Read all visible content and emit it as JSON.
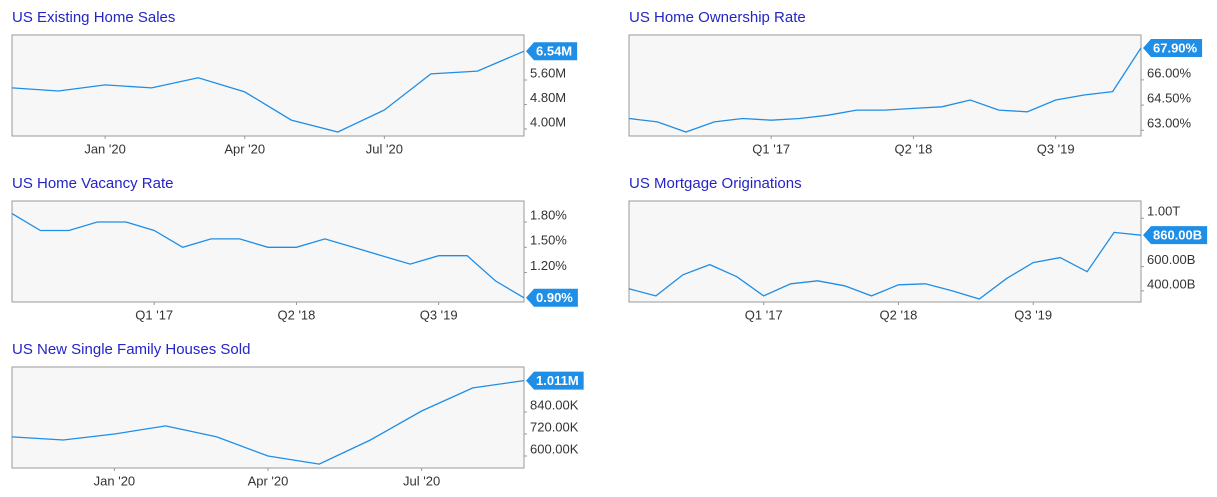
{
  "chart_data": [
    {
      "type": "line",
      "title": "US Existing Home Sales",
      "categories": [
        null,
        null,
        "Jan '20",
        null,
        null,
        "Apr '20",
        null,
        null,
        "Jul '20",
        null,
        null,
        null
      ],
      "values": [
        5.34,
        5.24,
        5.44,
        5.34,
        5.67,
        5.21,
        4.29,
        3.9,
        4.62,
        5.8,
        5.89,
        6.54
      ],
      "value_labels": [
        null,
        null,
        null,
        null,
        null,
        null,
        null,
        null,
        null,
        null,
        null,
        "6.54M"
      ],
      "color": "#1f8ee6",
      "ylim": [
        3.77,
        7.07
      ],
      "yticks": [
        {
          "value": 4.0,
          "label": "4.00M"
        },
        {
          "value": 4.8,
          "label": "4.80M"
        },
        {
          "value": 5.6,
          "label": "5.60M"
        }
      ]
    },
    {
      "type": "line",
      "title": "US Home Ownership Rate",
      "categories": [
        null,
        null,
        null,
        null,
        null,
        "Q1 '17",
        null,
        null,
        null,
        null,
        "Q2 '18",
        null,
        null,
        null,
        null,
        "Q3 '19",
        null,
        null,
        null
      ],
      "values": [
        63.7,
        63.5,
        62.9,
        63.5,
        63.7,
        63.6,
        63.7,
        63.9,
        64.2,
        64.2,
        64.3,
        64.4,
        64.8,
        64.2,
        64.1,
        64.8,
        65.1,
        65.3,
        67.9
      ],
      "value_labels": [
        null,
        null,
        null,
        null,
        null,
        null,
        null,
        null,
        null,
        null,
        null,
        null,
        null,
        null,
        null,
        null,
        null,
        null,
        "67.90%"
      ],
      "color": "#1f8ee6",
      "ylim": [
        62.66,
        68.67
      ],
      "yticks": [
        {
          "value": 63,
          "label": "63.00%"
        },
        {
          "value": 64.5,
          "label": "64.50%"
        },
        {
          "value": 66,
          "label": "66.00%"
        }
      ]
    },
    {
      "type": "line",
      "title": "US Home Vacancy Rate",
      "categories": [
        null,
        null,
        null,
        null,
        null,
        "Q1 '17",
        null,
        null,
        null,
        null,
        "Q2 '18",
        null,
        null,
        null,
        null,
        "Q3 '19",
        null,
        null,
        null
      ],
      "values": [
        1.9,
        1.7,
        1.7,
        1.8,
        1.8,
        1.7,
        1.5,
        1.6,
        1.6,
        1.5,
        1.5,
        1.6,
        1.5,
        1.4,
        1.3,
        1.4,
        1.4,
        1.1,
        0.9
      ],
      "value_labels": [
        null,
        null,
        null,
        null,
        null,
        null,
        null,
        null,
        null,
        null,
        null,
        null,
        null,
        null,
        null,
        null,
        null,
        null,
        "0.90%"
      ],
      "color": "#1f8ee6",
      "ylim": [
        0.85,
        2.05
      ],
      "yticks": [
        {
          "value": 1.2,
          "label": "1.20%"
        },
        {
          "value": 1.5,
          "label": "1.50%"
        },
        {
          "value": 1.8,
          "label": "1.80%"
        }
      ]
    },
    {
      "type": "line",
      "title": "US Mortgage Originations",
      "categories": [
        null,
        null,
        null,
        null,
        null,
        "Q1 '17",
        null,
        null,
        null,
        null,
        "Q2 '18",
        null,
        null,
        null,
        null,
        "Q3 '19",
        null,
        null,
        null,
        null
      ],
      "values": [
        417,
        358,
        533,
        617,
        517,
        358,
        458,
        483,
        442,
        358,
        450,
        458,
        400,
        333,
        500,
        633,
        675,
        558,
        883,
        860
      ],
      "value_labels": [
        null,
        null,
        null,
        null,
        null,
        null,
        null,
        null,
        null,
        null,
        null,
        null,
        null,
        null,
        null,
        null,
        null,
        null,
        null,
        "860.00B"
      ],
      "color": "#1f8ee6",
      "ylim": [
        308,
        1142
      ],
      "yticks": [
        {
          "value": 400,
          "label": "400.00B"
        },
        {
          "value": 600,
          "label": "600.00B"
        },
        {
          "value": 1000,
          "label": "1.00T"
        }
      ]
    },
    {
      "type": "line",
      "title": "US New Single Family Houses Sold",
      "categories": [
        null,
        null,
        "Jan '20",
        null,
        null,
        "Apr '20",
        null,
        null,
        "Jul '20",
        null,
        null
      ],
      "values": [
        704,
        687,
        720,
        764,
        704,
        600,
        556,
        687,
        845,
        971,
        1011
      ],
      "value_labels": [
        null,
        null,
        null,
        null,
        null,
        null,
        null,
        null,
        null,
        null,
        "1.011M"
      ],
      "color": "#1f8ee6",
      "ylim": [
        534.5,
        1085
      ],
      "yticks": [
        {
          "value": 600,
          "label": "600.00K"
        },
        {
          "value": 720,
          "label": "720.00K"
        },
        {
          "value": 840,
          "label": "840.00K"
        }
      ]
    }
  ]
}
